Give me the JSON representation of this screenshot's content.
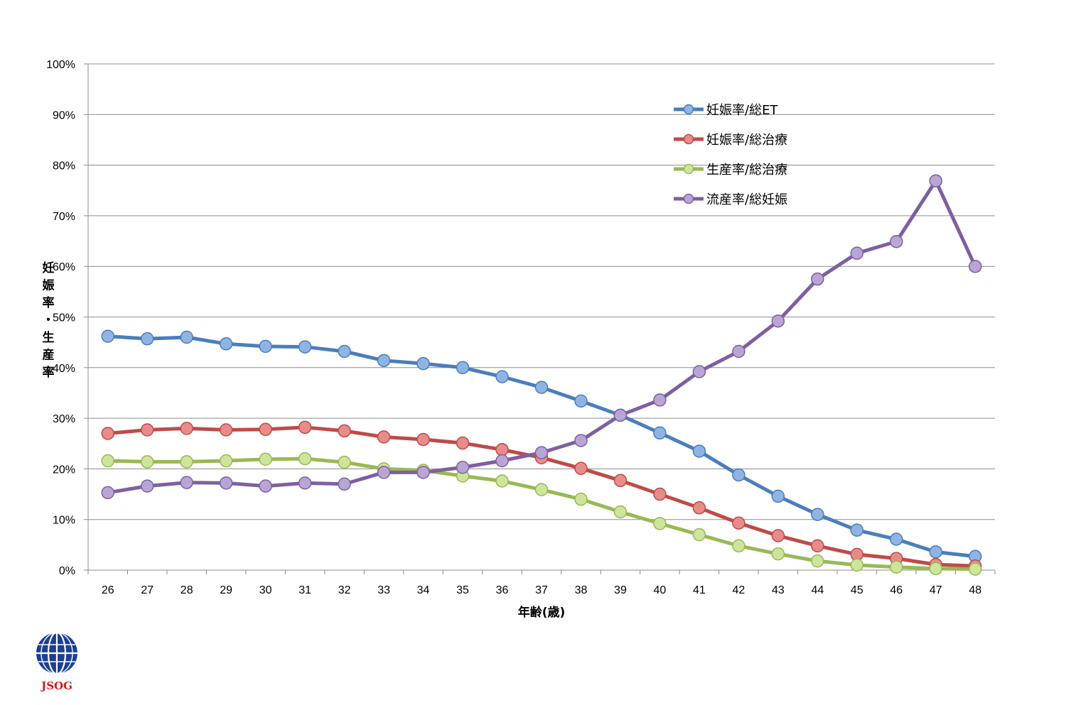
{
  "chart_data": {
    "type": "line",
    "title": "",
    "xlabel": "年齢(歳)",
    "ylabel_chars": [
      "妊",
      "娠",
      "率",
      "・",
      "生",
      "産",
      "率"
    ],
    "ylim": [
      0,
      100
    ],
    "y_ticks": [
      "0%",
      "10%",
      "20%",
      "30%",
      "40%",
      "50%",
      "60%",
      "70%",
      "80%",
      "90%",
      "100%"
    ],
    "grid": "horizontal",
    "legend_position": "top-right",
    "categories": [
      "26",
      "27",
      "28",
      "29",
      "30",
      "31",
      "32",
      "33",
      "34",
      "35",
      "36",
      "37",
      "38",
      "39",
      "40",
      "41",
      "42",
      "43",
      "44",
      "45",
      "46",
      "47",
      "48"
    ],
    "series": [
      {
        "name": "妊娠率/総ET",
        "color": "#4a7ebb",
        "marker_color": "#8fb4e3",
        "values": [
          46.2,
          45.7,
          46.0,
          44.7,
          44.2,
          44.1,
          43.2,
          41.4,
          40.8,
          40.0,
          38.2,
          36.1,
          33.4,
          30.6,
          27.1,
          23.5,
          18.8,
          14.6,
          11.0,
          7.9,
          6.1,
          3.6,
          2.7
        ]
      },
      {
        "name": "妊娠率/総治療",
        "color": "#be4b48",
        "marker_color": "#e88c8a",
        "values": [
          27.0,
          27.7,
          28.0,
          27.7,
          27.8,
          28.2,
          27.5,
          26.3,
          25.8,
          25.1,
          23.8,
          22.2,
          20.1,
          17.7,
          15.0,
          12.3,
          9.3,
          6.8,
          4.8,
          3.1,
          2.3,
          1.1,
          0.8
        ]
      },
      {
        "name": "生産率/総治療",
        "color": "#98b954",
        "marker_color": "#cde59a",
        "values": [
          21.6,
          21.4,
          21.4,
          21.6,
          21.9,
          22.0,
          21.3,
          20.0,
          19.7,
          18.6,
          17.6,
          15.9,
          14.0,
          11.5,
          9.2,
          7.0,
          4.8,
          3.2,
          1.8,
          1.0,
          0.6,
          0.3,
          0.2
        ]
      },
      {
        "name": "流産率/総妊娠",
        "color": "#7d60a0",
        "marker_color": "#b9a5d3",
        "values": [
          15.3,
          16.6,
          17.3,
          17.2,
          16.6,
          17.2,
          17.0,
          19.3,
          19.3,
          20.3,
          21.6,
          23.2,
          25.6,
          30.6,
          33.6,
          39.2,
          43.2,
          49.2,
          57.5,
          62.6,
          64.9,
          76.9,
          60.0
        ]
      }
    ]
  },
  "logo": {
    "text": "JSOG"
  }
}
